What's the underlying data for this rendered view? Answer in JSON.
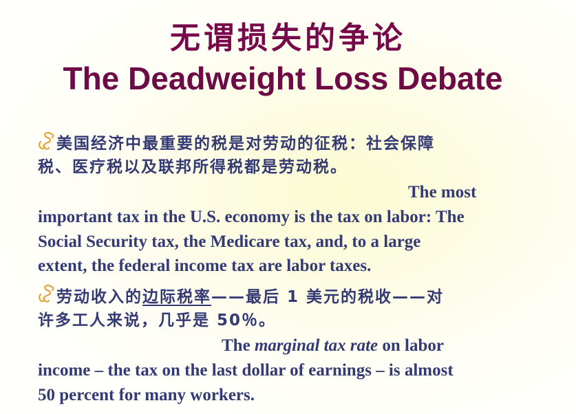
{
  "title": {
    "chinese": "无谓损失的争论",
    "english": "The Deadweight Loss Debate"
  },
  "bullet1": {
    "icon": "scroll-bullet-icon",
    "cn_line1": "美国经济中最重要的税是对劳动的征税：社会保障",
    "cn_line2": "税、医疗税以及联邦所得税都是劳动税。",
    "en_line1": "The most",
    "en_line2": "important tax in the U.S. economy is the tax on labor: The",
    "en_line3": "Social Security tax, the Medicare tax, and, to a large",
    "en_line4": "extent, the federal income tax are labor taxes."
  },
  "bullet2": {
    "icon": "scroll-bullet-icon",
    "cn_line1_a": "劳动收入的",
    "cn_line1_term": "边际税率",
    "cn_line1_b": "——最后 1 美元的税收——对",
    "cn_line2": "许多工人来说，几乎是 50％。",
    "en_line1_a": "The ",
    "en_line1_term": "marginal tax rate",
    "en_line1_b": " on labor",
    "en_line2": "income – the tax on the last dollar of earnings – is almost",
    "en_line3": "50 percent for many workers."
  },
  "colors": {
    "title": "#77094a",
    "body_text": "#343a74",
    "bullet": "#e0a43a"
  }
}
